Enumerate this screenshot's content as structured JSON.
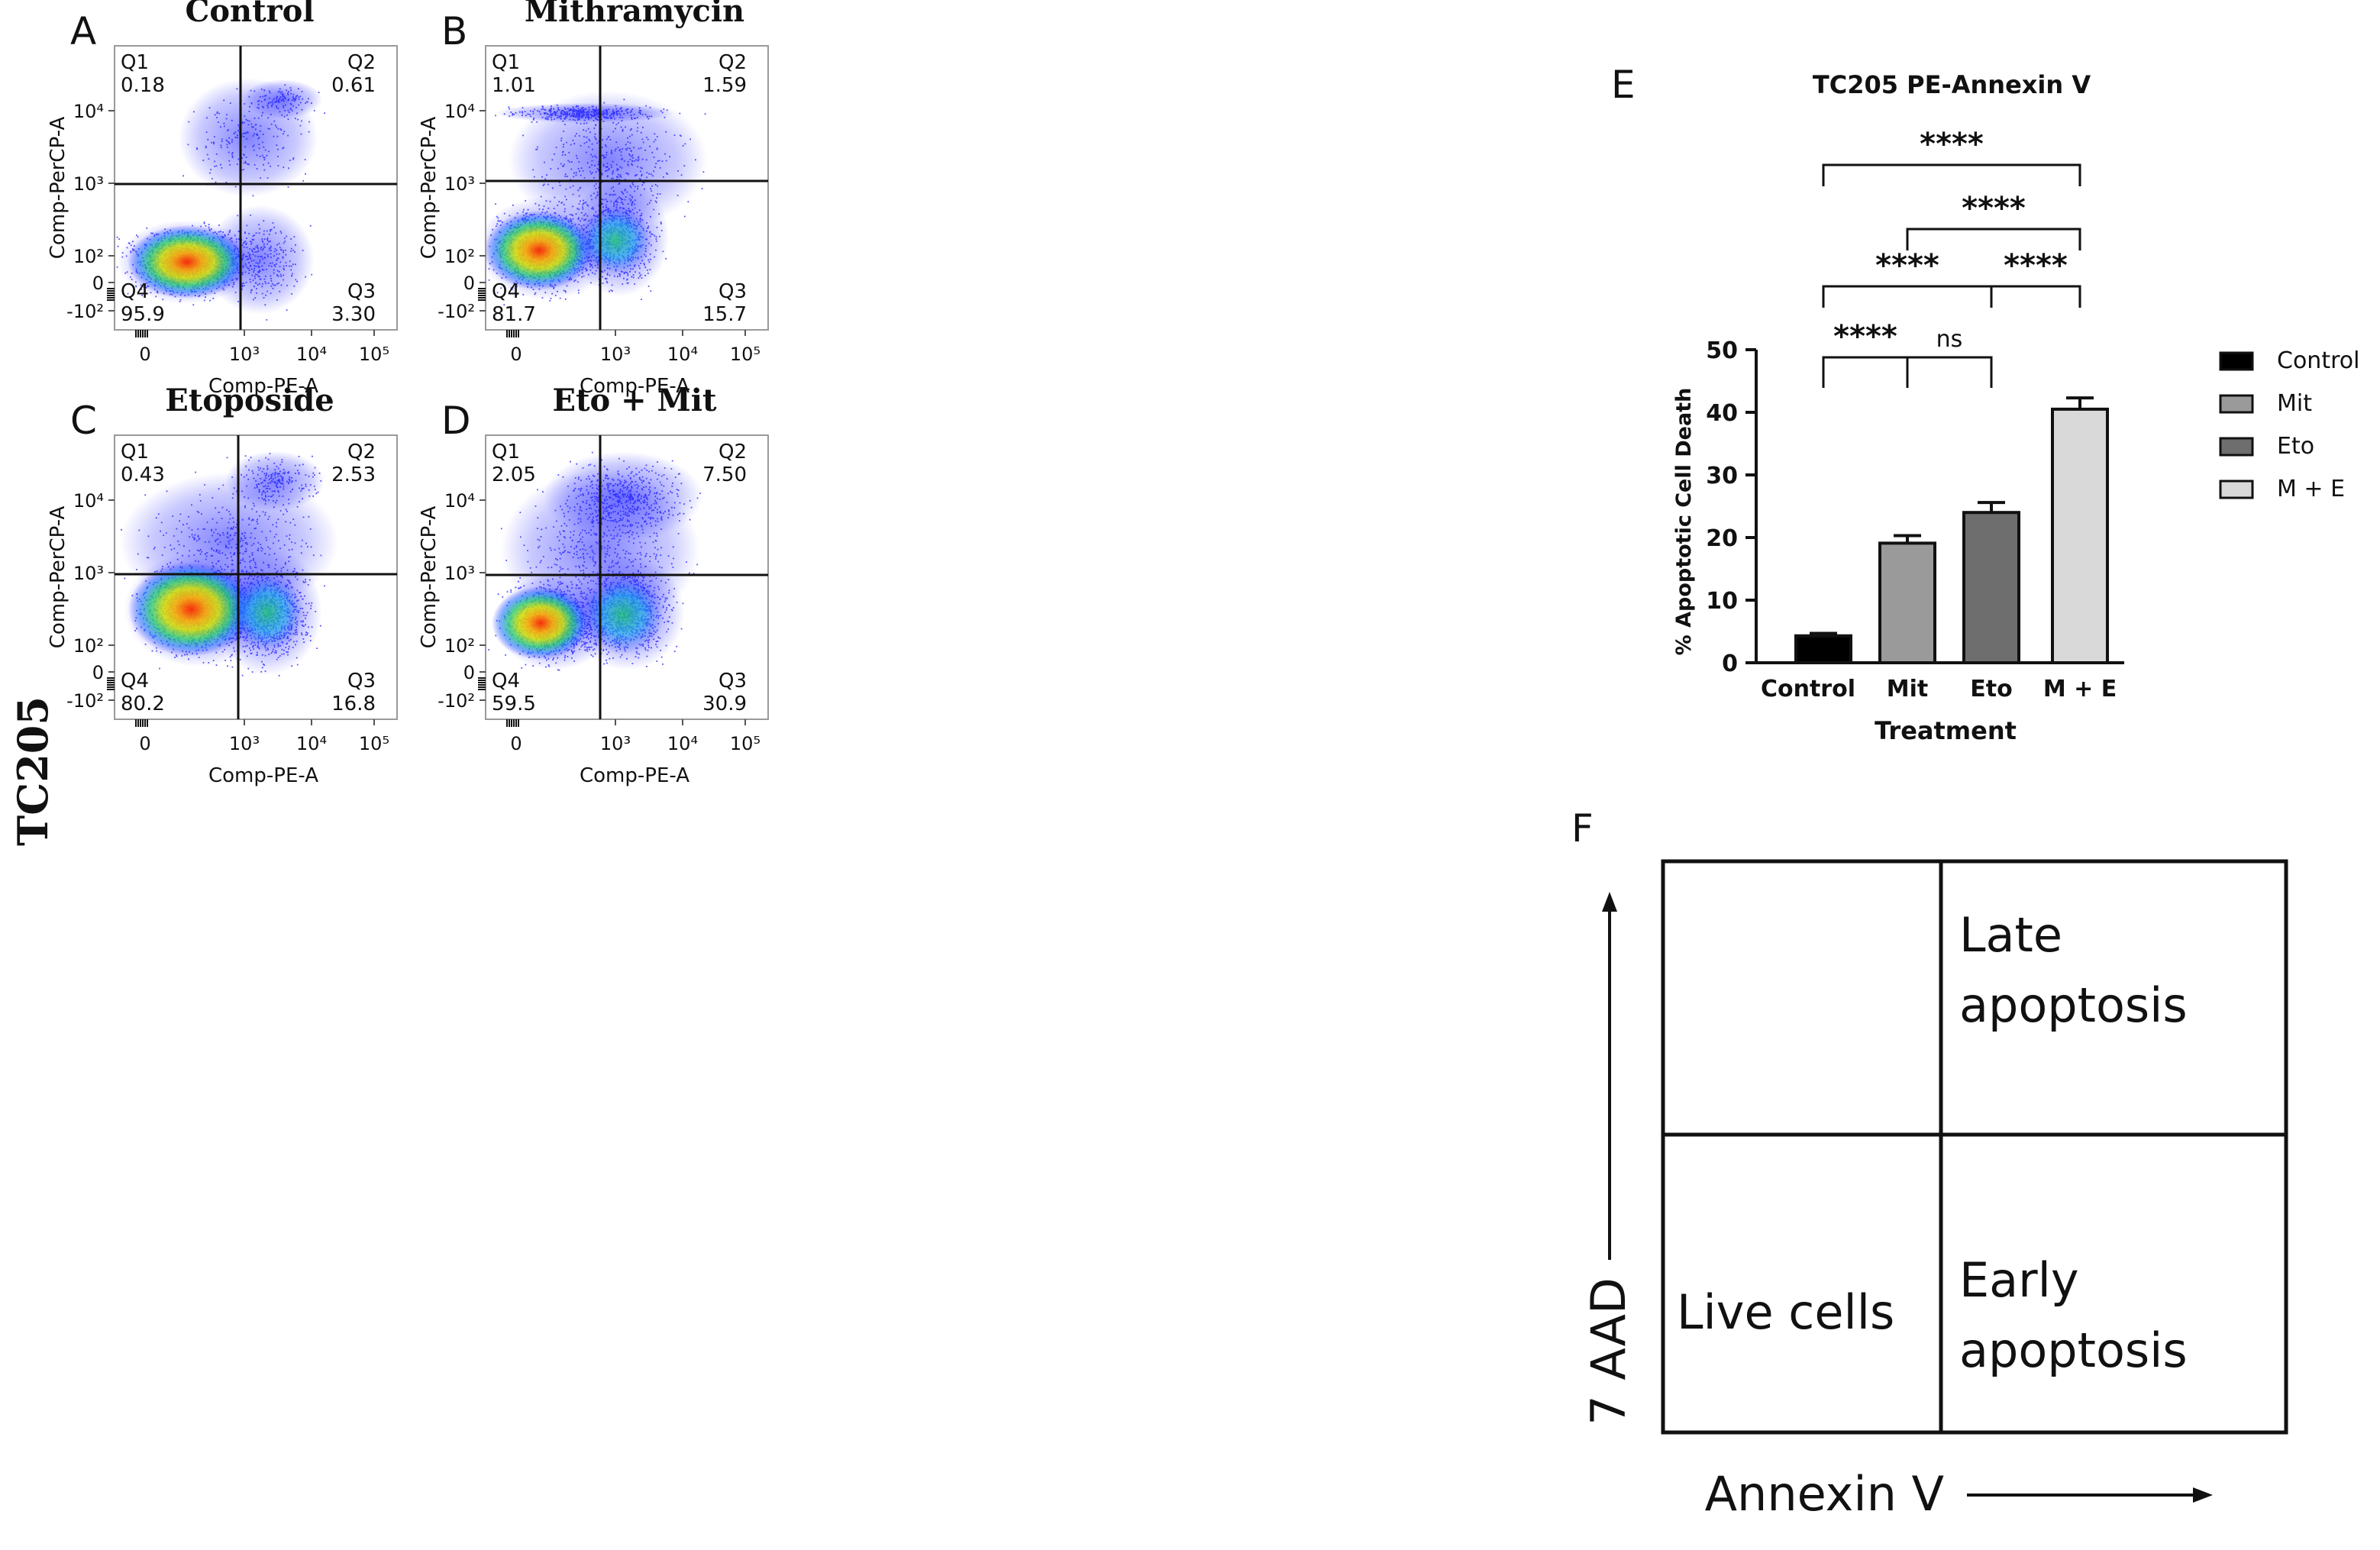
{
  "figure": {
    "cell_line": "TC205",
    "colors": {
      "axis": "#111111",
      "dots": "#1a1aff",
      "hot": "#ff2a00",
      "warm": "#f2e600",
      "mid": "#22d36a"
    }
  },
  "flow_panels": [
    {
      "letter": "A",
      "title": "Control",
      "xlabel": "Comp-PE-A",
      "ylabel": "Comp-PerCP-A",
      "xticks": [
        "0",
        "10³",
        "10⁴",
        "10⁵"
      ],
      "yticks": [
        "10⁴",
        "10³",
        "10²",
        "0",
        "-10²"
      ],
      "quadrants": {
        "q1": {
          "name": "Q1",
          "value": "0.18"
        },
        "q2": {
          "name": "Q2",
          "value": "0.61"
        },
        "q3": {
          "name": "Q3",
          "value": "3.30"
        },
        "q4": {
          "name": "Q4",
          "value": "95.9"
        }
      }
    },
    {
      "letter": "B",
      "title": "Mithramycin",
      "xlabel": "Comp-PE-A",
      "ylabel": "Comp-PerCP-A",
      "xticks": [
        "0",
        "10³",
        "10⁴",
        "10⁵"
      ],
      "yticks": [
        "10⁴",
        "10³",
        "10²",
        "0",
        "-10²"
      ],
      "quadrants": {
        "q1": {
          "name": "Q1",
          "value": "1.01"
        },
        "q2": {
          "name": "Q2",
          "value": "1.59"
        },
        "q3": {
          "name": "Q3",
          "value": "15.7"
        },
        "q4": {
          "name": "Q4",
          "value": "81.7"
        }
      }
    },
    {
      "letter": "C",
      "title": "Etoposide",
      "xlabel": "Comp-PE-A",
      "ylabel": "Comp-PerCP-A",
      "xticks": [
        "0",
        "10³",
        "10⁴",
        "10⁵"
      ],
      "yticks": [
        "10⁴",
        "10³",
        "10²",
        "0",
        "-10²"
      ],
      "quadrants": {
        "q1": {
          "name": "Q1",
          "value": "0.43"
        },
        "q2": {
          "name": "Q2",
          "value": "2.53"
        },
        "q3": {
          "name": "Q3",
          "value": "16.8"
        },
        "q4": {
          "name": "Q4",
          "value": "80.2"
        }
      }
    },
    {
      "letter": "D",
      "title": "Eto + Mit",
      "xlabel": "Comp-PE-A",
      "ylabel": "Comp-PerCP-A",
      "xticks": [
        "0",
        "10³",
        "10⁴",
        "10⁵"
      ],
      "yticks": [
        "10⁴",
        "10³",
        "10²",
        "0",
        "-10²"
      ],
      "quadrants": {
        "q1": {
          "name": "Q1",
          "value": "2.05"
        },
        "q2": {
          "name": "Q2",
          "value": "7.50"
        },
        "q3": {
          "name": "Q3",
          "value": "30.9"
        },
        "q4": {
          "name": "Q4",
          "value": "59.5"
        }
      }
    }
  ],
  "chart_data": {
    "type": "bar",
    "panel_letter": "E",
    "title": "TC205 PE-Annexin V",
    "xlabel": "Treatment",
    "ylabel": "% Apoptotic Cell Death",
    "ylim": [
      0,
      50
    ],
    "yticks": [
      0,
      10,
      20,
      30,
      40,
      50
    ],
    "categories": [
      "Control",
      "Mit",
      "Eto",
      "M + E"
    ],
    "values": [
      4.3,
      19.1,
      24.0,
      40.5
    ],
    "errors": [
      0.4,
      1.2,
      1.6,
      1.8
    ],
    "bar_colors": [
      "#000000",
      "#9a9a9a",
      "#6e6e6e",
      "#d9d9d9"
    ],
    "legend": [
      "Control",
      "Mit",
      "Eto",
      "M + E"
    ],
    "legend_position": "right",
    "comparisons": [
      {
        "from": 0,
        "to": 3,
        "label": "****",
        "level": 4
      },
      {
        "from": 1,
        "to": 3,
        "label": "****",
        "level": 3
      },
      {
        "from": 0,
        "to": 2,
        "label": "****",
        "level": 2
      },
      {
        "from": 2,
        "to": 3,
        "label": "****",
        "level": 2
      },
      {
        "from": 0,
        "to": 1,
        "label": "****",
        "level": 1
      },
      {
        "from": 1,
        "to": 2,
        "label": "ns",
        "level": 1
      }
    ]
  },
  "schematic": {
    "letter": "F",
    "top_right": [
      "Late",
      "apoptosis"
    ],
    "bottom_left": "Live cells",
    "bottom_right": [
      "Early",
      "apoptosis"
    ],
    "xlabel": "Annexin V",
    "ylabel": "7 AAD"
  }
}
